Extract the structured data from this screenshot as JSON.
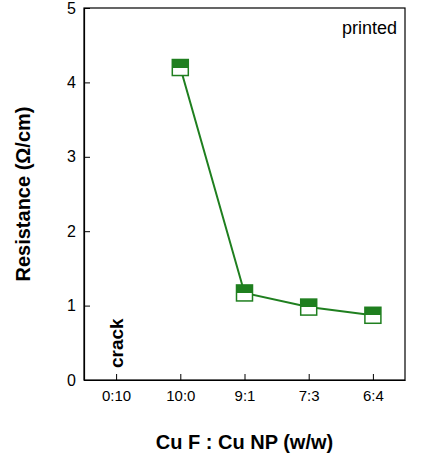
{
  "chart_data": {
    "type": "line",
    "x_label": "Cu F : Cu NP (w/w)",
    "y_label": "Resistance (Ω/cm)",
    "annotations": [
      "printed",
      "crack"
    ],
    "categories": [
      "0:10",
      "10:0",
      "9:1",
      "7:3",
      "6:4"
    ],
    "values": [
      null,
      4.2,
      1.17,
      0.98,
      0.87
    ],
    "color": "#1f7f1f",
    "marker": "square",
    "line_style": "solid",
    "ylim": [
      0,
      5
    ],
    "yticks": [
      0,
      1,
      2,
      3,
      4,
      5
    ]
  }
}
